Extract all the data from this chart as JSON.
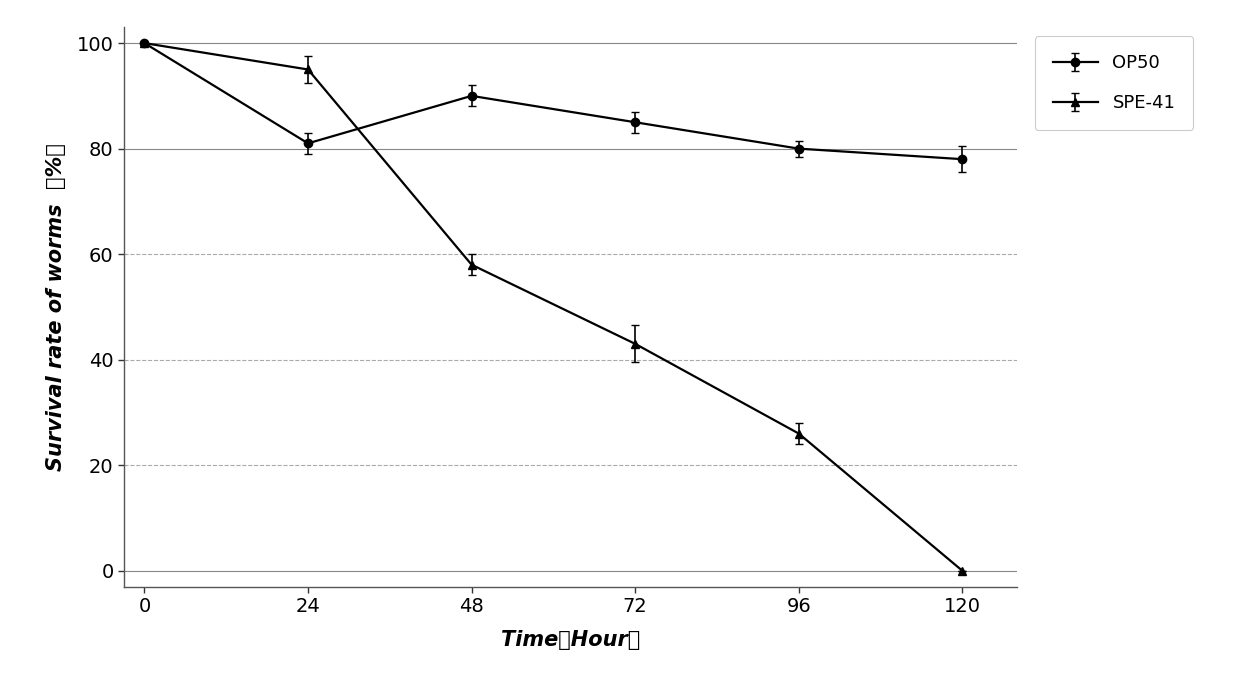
{
  "x": [
    0,
    24,
    48,
    72,
    96,
    120
  ],
  "OP50_y": [
    100,
    81,
    90,
    85,
    80,
    78
  ],
  "OP50_err": [
    0,
    2.0,
    2.0,
    2.0,
    1.5,
    2.5
  ],
  "SPE41_y": [
    100,
    95,
    58,
    43,
    26,
    0
  ],
  "SPE41_err": [
    0,
    2.5,
    2.0,
    3.5,
    2.0,
    0
  ],
  "legend_OP50": "OP50",
  "legend_SPE41": "SPE-41",
  "xticks": [
    0,
    24,
    48,
    72,
    96,
    120
  ],
  "yticks": [
    0,
    20,
    40,
    60,
    80,
    100
  ],
  "ylim": [
    -3,
    103
  ],
  "xlim": [
    -3,
    128
  ],
  "line_color": "#000000",
  "grid_color_solid": "#999999",
  "grid_color_dash": "#aaaaaa",
  "marker_OP50": "o",
  "marker_SPE41": "^",
  "markersize": 6,
  "linewidth": 1.6,
  "capsize": 3,
  "elinewidth": 1.2,
  "axis_label_fontsize": 15,
  "tick_fontsize": 14,
  "legend_fontsize": 13
}
